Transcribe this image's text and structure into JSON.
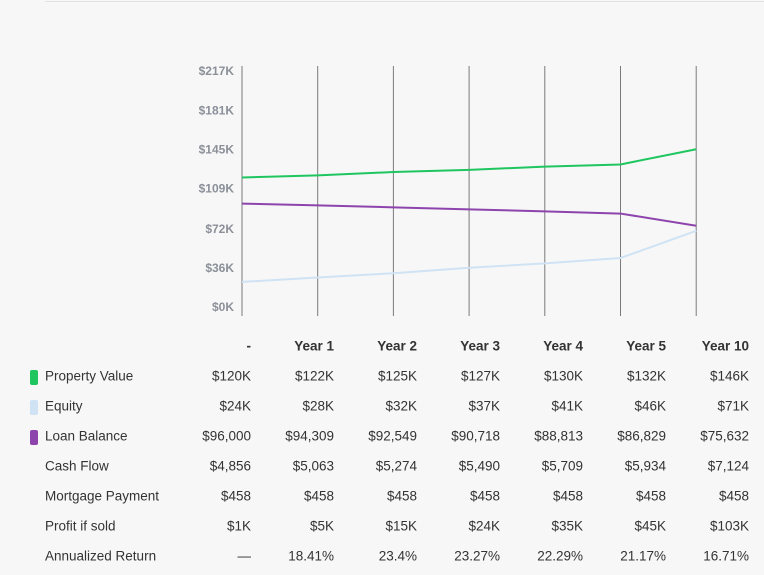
{
  "chart_data": {
    "type": "line",
    "categories": [
      "-",
      "Year 1",
      "Year 2",
      "Year 3",
      "Year 4",
      "Year 5",
      "Year 10"
    ],
    "ylim": [
      0,
      217
    ],
    "yticks": [
      {
        "value": 0,
        "label": "$0K"
      },
      {
        "value": 36,
        "label": "$36K"
      },
      {
        "value": 72,
        "label": "$72K"
      },
      {
        "value": 109,
        "label": "$109K"
      },
      {
        "value": 145,
        "label": "$145K"
      },
      {
        "value": 181,
        "label": "$181K"
      },
      {
        "value": 217,
        "label": "$217K"
      }
    ],
    "series": [
      {
        "name": "Property Value",
        "color": "#1fc65f",
        "values": [
          120,
          122,
          125,
          127,
          130,
          132,
          146
        ],
        "value_labels": [
          "$120K",
          "$122K",
          "$125K",
          "$127K",
          "$130K",
          "$132K",
          "$146K"
        ]
      },
      {
        "name": "Equity",
        "color": "#cfe3f4",
        "values": [
          24,
          28,
          32,
          37,
          41,
          46,
          71
        ],
        "value_labels": [
          "$24K",
          "$28K",
          "$32K",
          "$37K",
          "$41K",
          "$46K",
          "$71K"
        ]
      },
      {
        "name": "Loan Balance",
        "color": "#8e44ad",
        "values": [
          96.0,
          94.309,
          92.549,
          90.718,
          88.813,
          86.829,
          75.632
        ],
        "value_labels": [
          "$96,000",
          "$94,309",
          "$92,549",
          "$90,718",
          "$88,813",
          "$86,829",
          "$75,632"
        ]
      }
    ]
  },
  "table": {
    "rows": [
      {
        "name": "Cash Flow",
        "cells": [
          "$4,856",
          "$5,063",
          "$5,274",
          "$5,490",
          "$5,709",
          "$5,934",
          "$7,124"
        ]
      },
      {
        "name": "Mortgage Payment",
        "cells": [
          "$458",
          "$458",
          "$458",
          "$458",
          "$458",
          "$458",
          "$458"
        ]
      },
      {
        "name": "Profit if sold",
        "cells": [
          "$1K",
          "$5K",
          "$15K",
          "$24K",
          "$35K",
          "$45K",
          "$103K"
        ]
      },
      {
        "name": "Annualized Return",
        "cells": [
          "—",
          "18.41%",
          "23.4%",
          "23.27%",
          "22.29%",
          "21.17%",
          "16.71%"
        ]
      }
    ]
  }
}
